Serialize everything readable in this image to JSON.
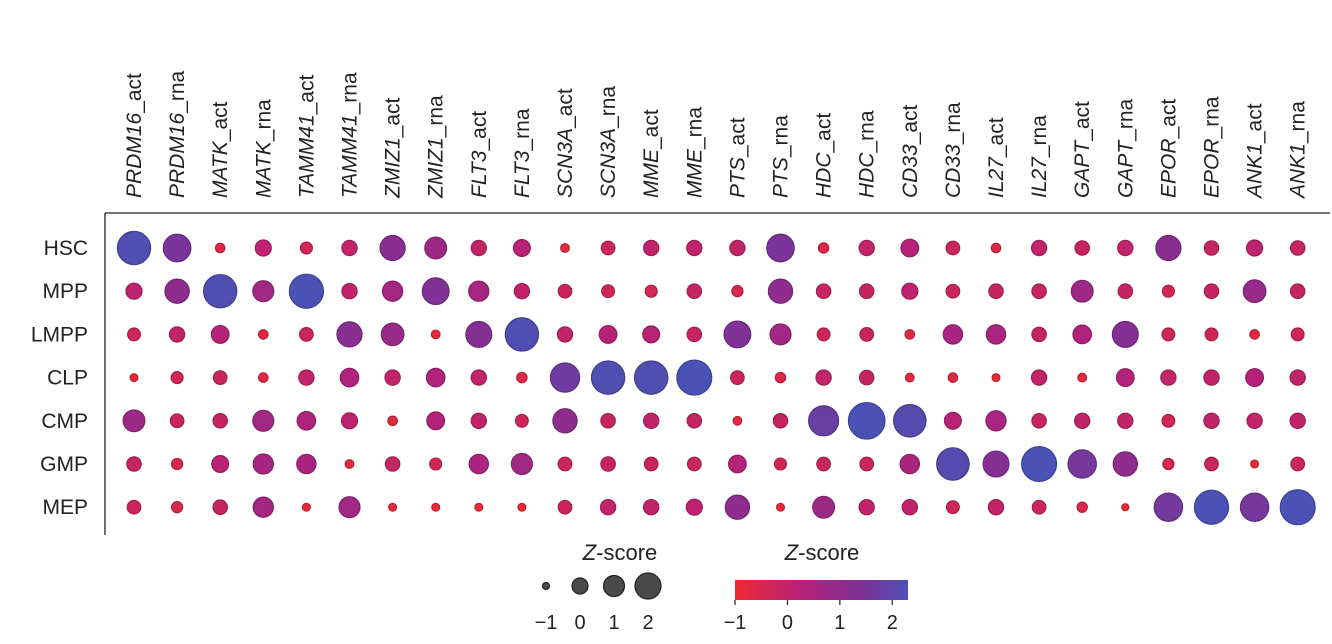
{
  "chart_data": {
    "type": "dotplot",
    "title": "",
    "columns": [
      {
        "gene": "PRDM16",
        "suffix": "_act"
      },
      {
        "gene": "PRDM16",
        "suffix": "_rna"
      },
      {
        "gene": "MATK",
        "suffix": "_act"
      },
      {
        "gene": "MATK",
        "suffix": "_rna"
      },
      {
        "gene": "TAMM41",
        "suffix": "_act"
      },
      {
        "gene": "TAMM41",
        "suffix": "_rna"
      },
      {
        "gene": "ZMIZ1",
        "suffix": "_act"
      },
      {
        "gene": "ZMIZ1",
        "suffix": "_rna"
      },
      {
        "gene": "FLT3",
        "suffix": "_act"
      },
      {
        "gene": "FLT3",
        "suffix": "_rna"
      },
      {
        "gene": "SCN3A",
        "suffix": "_act"
      },
      {
        "gene": "SCN3A",
        "suffix": "_rna"
      },
      {
        "gene": "MME",
        "suffix": "_act"
      },
      {
        "gene": "MME",
        "suffix": "_rna"
      },
      {
        "gene": "PTS",
        "suffix": "_act"
      },
      {
        "gene": "PTS",
        "suffix": "_rna"
      },
      {
        "gene": "HDC",
        "suffix": "_act"
      },
      {
        "gene": "HDC",
        "suffix": "_rna"
      },
      {
        "gene": "CD33",
        "suffix": "_act"
      },
      {
        "gene": "CD33",
        "suffix": "_rna"
      },
      {
        "gene": "IL27",
        "suffix": "_act"
      },
      {
        "gene": "IL27",
        "suffix": "_rna"
      },
      {
        "gene": "GAPT",
        "suffix": "_act"
      },
      {
        "gene": "GAPT",
        "suffix": "_rna"
      },
      {
        "gene": "EPOR",
        "suffix": "_act"
      },
      {
        "gene": "EPOR",
        "suffix": "_rna"
      },
      {
        "gene": "ANK1",
        "suffix": "_act"
      },
      {
        "gene": "ANK1",
        "suffix": "_rna"
      }
    ],
    "rows": [
      "HSC",
      "MPP",
      "LMPP",
      "CLP",
      "CMP",
      "GMP",
      "MEP"
    ],
    "zscores": [
      [
        2.2,
        1.5,
        -0.7,
        0.1,
        -0.4,
        0.0,
        1.2,
        0.8,
        0.0,
        0.2,
        -0.8,
        -0.2,
        0.0,
        0.0,
        0.0,
        1.5,
        -0.6,
        0.0,
        0.3,
        -0.2,
        -0.7,
        0.0,
        -0.1,
        0.0,
        1.2,
        -0.1,
        0.1,
        -0.1
      ],
      [
        0.1,
        1.1,
        2.2,
        0.7,
        2.3,
        0.0,
        0.6,
        1.4,
        0.6,
        0.0,
        -0.2,
        -0.3,
        -0.4,
        -0.1,
        -0.5,
        1.1,
        -0.1,
        -0.1,
        0.1,
        -0.2,
        -0.1,
        -0.1,
        0.8,
        -0.1,
        -0.4,
        -0.1,
        0.9,
        -0.1
      ],
      [
        -0.3,
        0.0,
        0.3,
        -0.7,
        -0.2,
        1.2,
        0.9,
        -0.8,
        1.3,
        2.2,
        0.0,
        0.3,
        0.2,
        -0.1,
        1.4,
        0.7,
        -0.3,
        -0.2,
        -0.7,
        0.5,
        0.5,
        -0.1,
        0.4,
        1.3,
        -0.3,
        -0.3,
        -0.7,
        -0.3
      ],
      [
        -0.9,
        -0.4,
        -0.2,
        -0.7,
        0.0,
        0.4,
        0.0,
        0.4,
        0.0,
        -0.6,
        1.7,
        2.2,
        2.2,
        2.4,
        -0.2,
        -0.6,
        0.0,
        -0.1,
        -0.8,
        -0.7,
        -0.9,
        0.0,
        -0.8,
        0.3,
        0.0,
        0.0,
        0.3,
        0.0
      ],
      [
        0.8,
        -0.2,
        -0.1,
        0.7,
        0.4,
        0.1,
        -0.7,
        0.3,
        0.0,
        -0.3,
        1.1,
        -0.1,
        0.0,
        -0.1,
        -0.8,
        -0.1,
        1.8,
        2.6,
        2.1,
        0.2,
        0.6,
        -0.1,
        0.0,
        0.0,
        -0.3,
        0.0,
        0.0,
        0.0
      ],
      [
        -0.1,
        -0.5,
        0.2,
        0.6,
        0.5,
        -0.8,
        -0.1,
        -0.4,
        0.5,
        0.7,
        -0.2,
        -0.1,
        -0.2,
        -0.2,
        0.3,
        -0.4,
        -0.2,
        -0.2,
        0.5,
        2.1,
        1.3,
        2.4,
        1.6,
        1.1,
        -0.5,
        -0.2,
        -0.9,
        -0.2
      ],
      [
        -0.2,
        -0.5,
        -0.1,
        0.6,
        -0.9,
        0.7,
        -0.9,
        -0.9,
        -0.9,
        -0.9,
        -0.2,
        0.0,
        0.0,
        0.1,
        1.1,
        -0.9,
        0.8,
        0.0,
        0.0,
        -0.3,
        0.0,
        -0.2,
        -0.6,
        -1.0,
        1.6,
        2.3,
        1.6,
        2.4
      ]
    ],
    "size_legend": {
      "title_var": "Z",
      "title_rest": "-score",
      "values": [
        -1,
        0,
        1,
        2
      ],
      "tick_labels": [
        "−1",
        "0",
        "1",
        "2"
      ]
    },
    "color_legend": {
      "title_var": "Z",
      "title_rest": "-score",
      "range": [
        -1,
        2.3
      ],
      "ticks": [
        -1,
        0,
        1,
        2
      ],
      "tick_labels": [
        "−1",
        "0",
        "1",
        "2"
      ],
      "colors": [
        "#ee2a33",
        "#b3227a",
        "#7c3398",
        "#4b52b5"
      ]
    }
  }
}
